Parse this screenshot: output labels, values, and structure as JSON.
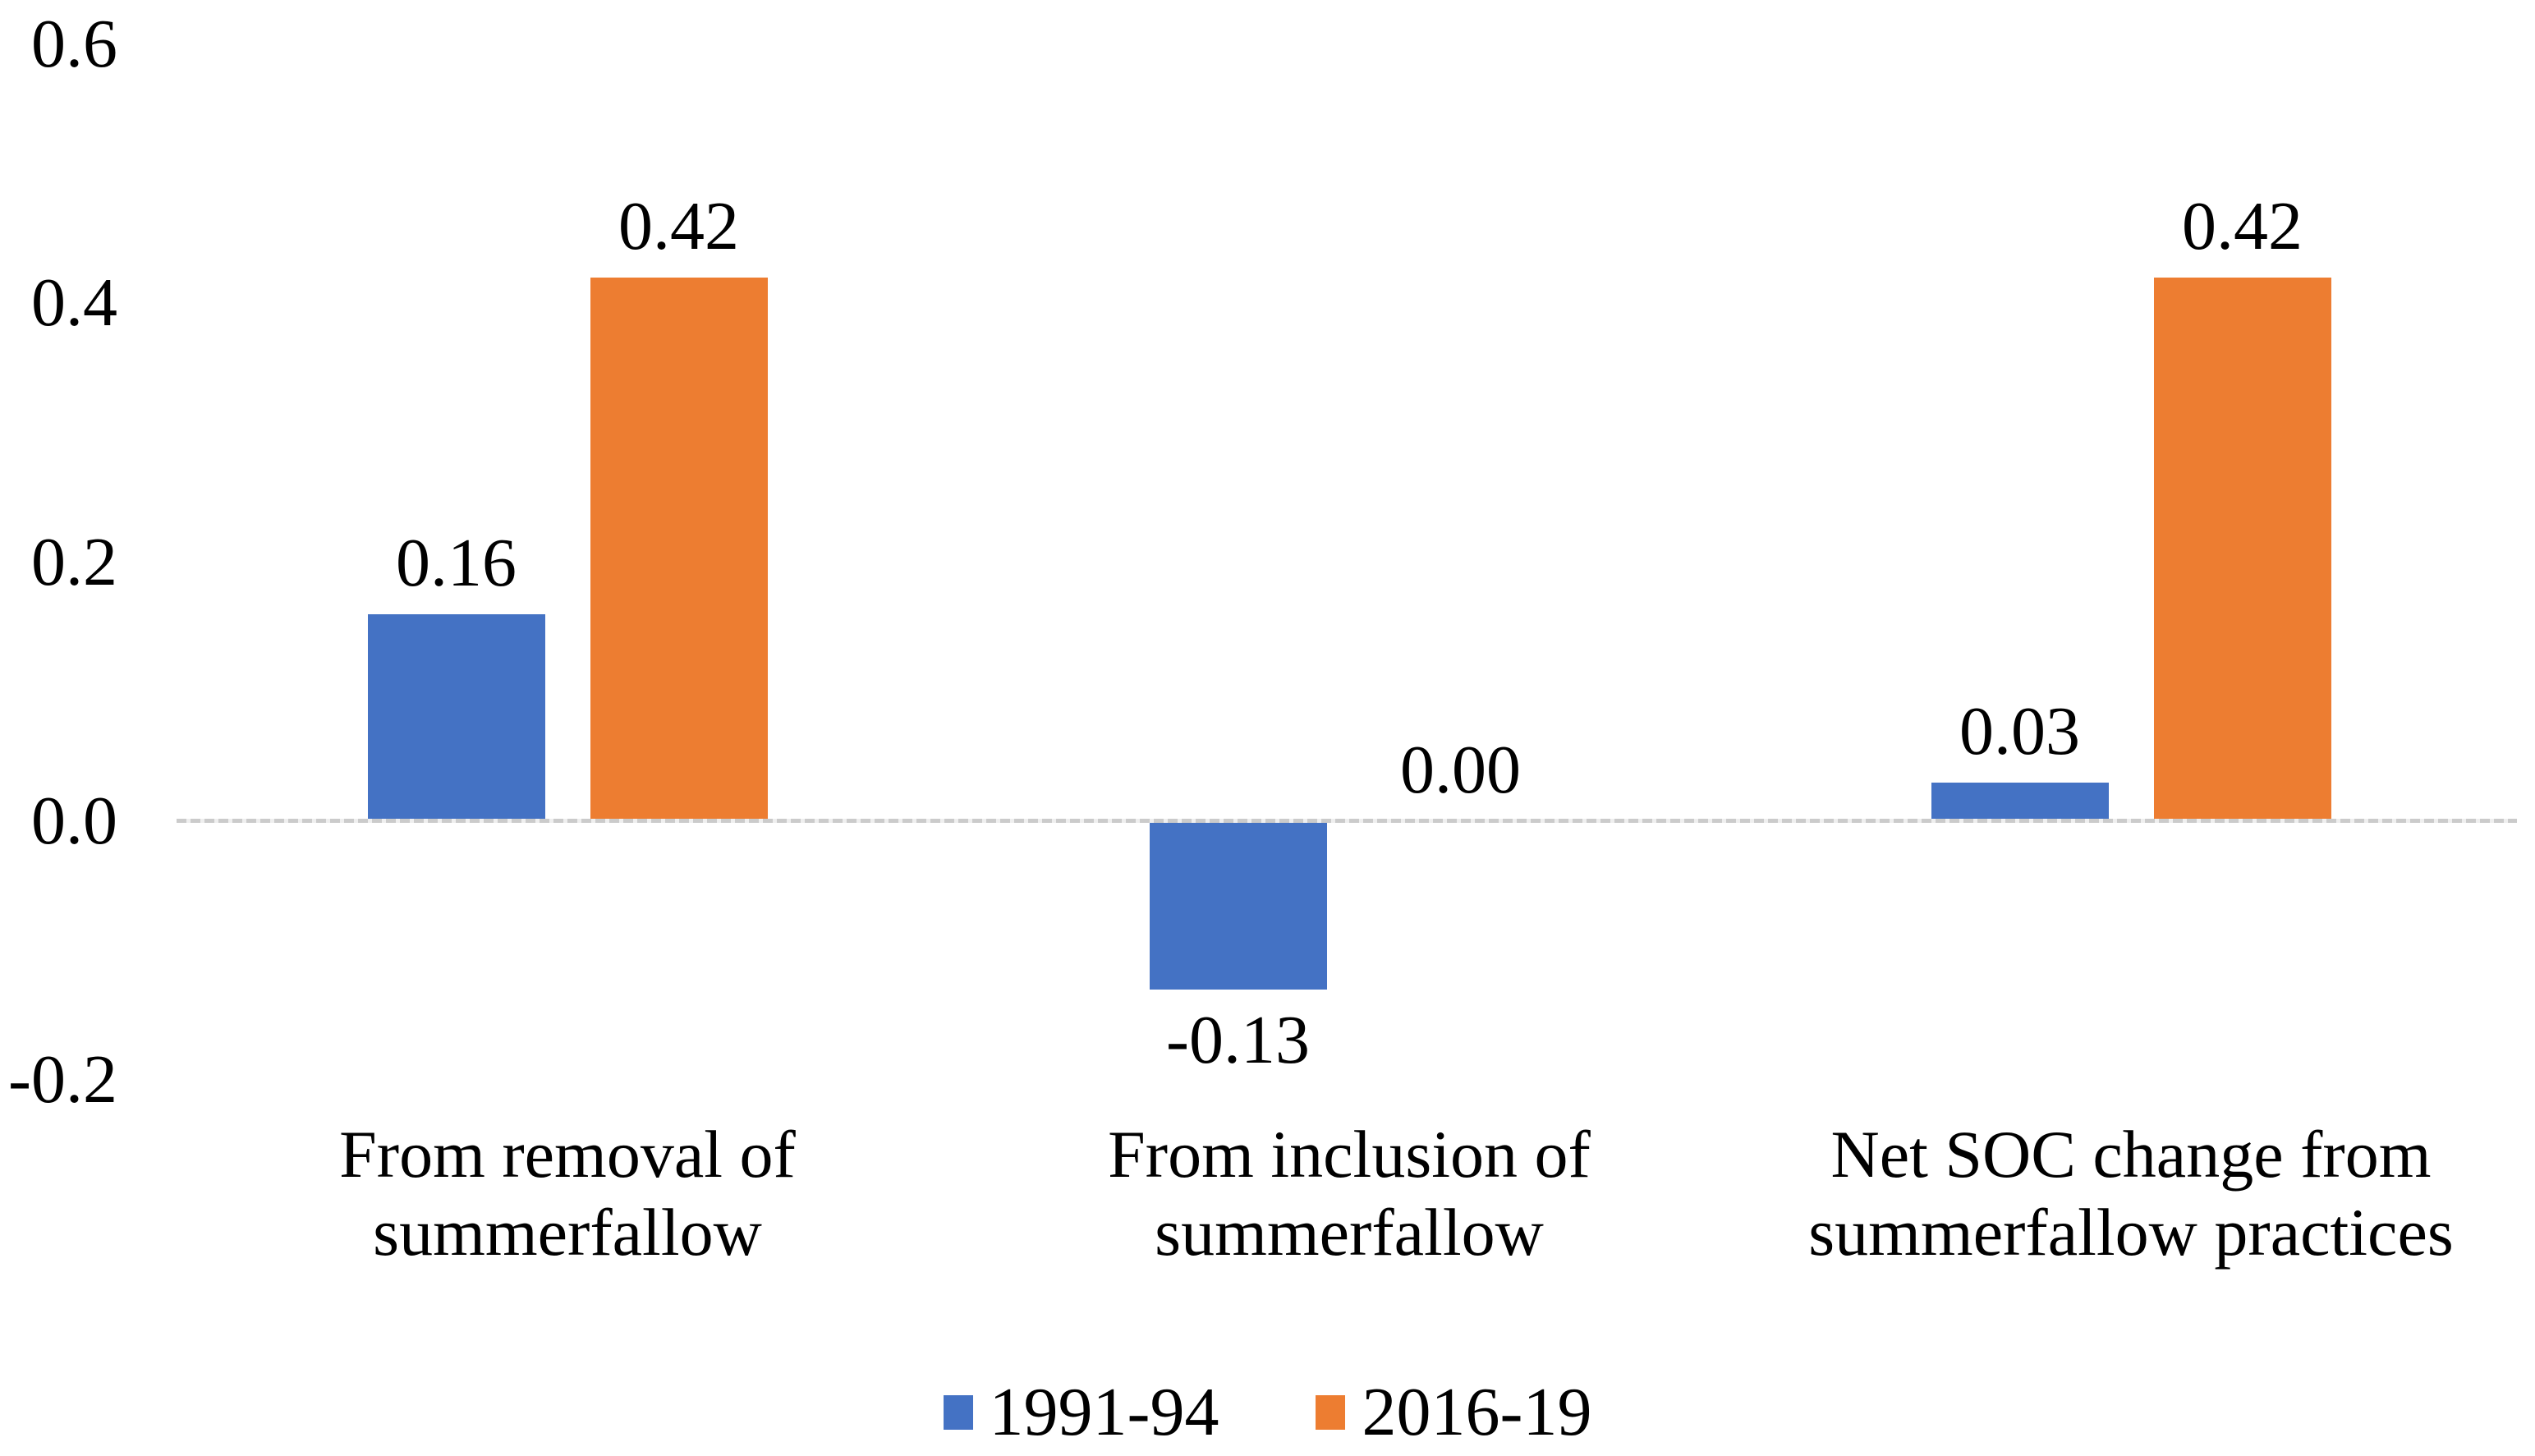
{
  "chart_data": {
    "type": "bar",
    "categories": [
      "From removal of\nsummerfallow",
      "From inclusion of\nsummerfallow",
      "Net SOC change from\nsummerfallow practices"
    ],
    "series": [
      {
        "name": "1991-94",
        "color": "#4472C4",
        "values": [
          0.16,
          -0.13,
          0.03
        ],
        "labels": [
          "0.16",
          "-0.13",
          "0.03"
        ]
      },
      {
        "name": "2016-19",
        "color": "#ED7D31",
        "values": [
          0.42,
          0.0,
          0.42
        ],
        "labels": [
          "0.42",
          "0.00",
          "0.42"
        ]
      }
    ],
    "y_axis": {
      "min": -0.2,
      "max": 0.6,
      "tick_step": 0.2,
      "ticks": [
        {
          "value": 0.6,
          "label": "0.6"
        },
        {
          "value": 0.4,
          "label": "0.4"
        },
        {
          "value": 0.2,
          "label": "0.2"
        },
        {
          "value": 0.0,
          "label": "0.0"
        },
        {
          "value": -0.2,
          "label": "-0.2"
        }
      ]
    },
    "grid": false,
    "legend_position": "bottom",
    "axis_line_color": "#cbcbcb",
    "text_color": "#000000",
    "background_color": "#ffffff"
  }
}
